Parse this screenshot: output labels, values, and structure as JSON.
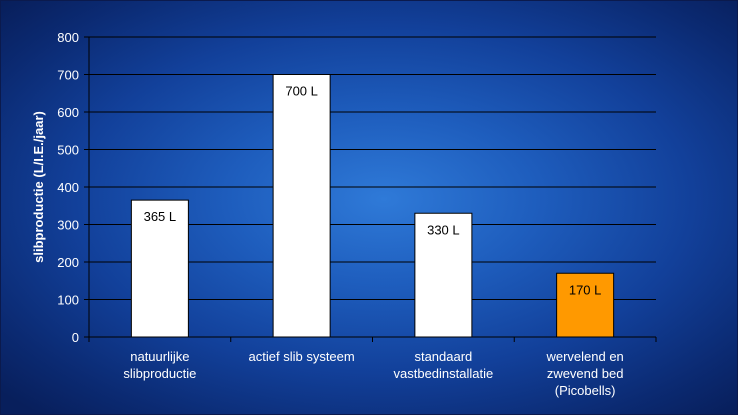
{
  "chart_data": {
    "type": "bar",
    "title": "",
    "xlabel": "",
    "ylabel": "slibproductie (L/I.E./jaar)",
    "ylim": [
      0,
      800
    ],
    "yticks": [
      0,
      100,
      200,
      300,
      400,
      500,
      600,
      700,
      800
    ],
    "grid": "horizontal",
    "categories": [
      [
        "natuurlijke",
        "slibproductie"
      ],
      [
        "actief slib systeem"
      ],
      [
        "standaard",
        "vastbedinstallatie"
      ],
      [
        "wervelend en",
        "zwevend bed",
        "(Picobells)"
      ]
    ],
    "values": [
      365,
      700,
      330,
      170
    ],
    "data_labels": [
      "365 L",
      "700 L",
      "330 L",
      "170 L"
    ],
    "colors": [
      "#ffffff",
      "#ffffff",
      "#ffffff",
      "#ff9900"
    ]
  }
}
